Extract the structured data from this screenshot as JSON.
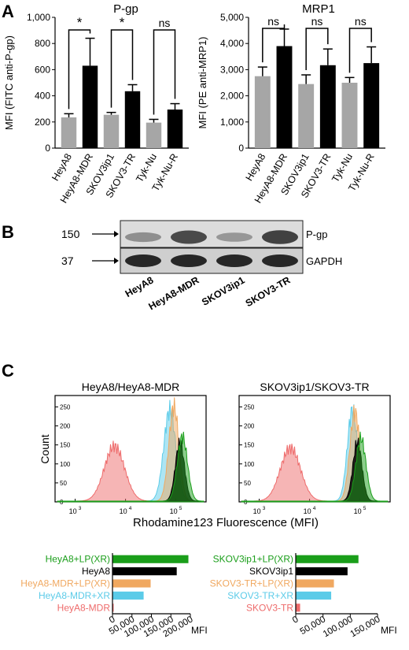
{
  "panels": {
    "a": {
      "letter": "A"
    },
    "b": {
      "letter": "B"
    },
    "c": {
      "letter": "C"
    }
  },
  "colors": {
    "gray": "#a6a6a6",
    "black": "#000000",
    "green": "#1a9e1a",
    "orange": "#f0a860",
    "cyan": "#5bcbe8",
    "red": "#ee6b6b"
  },
  "chart_data": [
    {
      "id": "pgp",
      "type": "bar",
      "title": "P-gp",
      "ylabel": "MFI (FITC anti-P-gp)",
      "ylim": [
        0,
        1000
      ],
      "yticks": [
        "0",
        "200",
        "400",
        "600",
        "800",
        "1,000"
      ],
      "categories": [
        "HeyA8",
        "HeyA8-MDR",
        "SKOV3ip1",
        "SKOV3-TR",
        "Tyk-Nu",
        "Tyk-Nu-R"
      ],
      "values": [
        235,
        630,
        255,
        435,
        195,
        295
      ],
      "errors": [
        28,
        210,
        18,
        50,
        25,
        45
      ],
      "bar_colors": [
        "#a6a6a6",
        "#000000",
        "#a6a6a6",
        "#000000",
        "#a6a6a6",
        "#000000"
      ],
      "significance": [
        "*",
        "*",
        "ns"
      ]
    },
    {
      "id": "mrp1",
      "type": "bar",
      "title": "MRP1",
      "ylabel": "MFI (PE anti-MRP1)",
      "ylim": [
        0,
        5000
      ],
      "yticks": [
        "0",
        "1,000",
        "2,000",
        "3,000",
        "4,000",
        "5,000"
      ],
      "categories": [
        "HeyA8",
        "HeyA8-MDR",
        "SKOV3ip1",
        "SKOV3-TR",
        "Tyk-Nu",
        "Tyk-Nu-R"
      ],
      "values": [
        2750,
        3900,
        2450,
        3170,
        2500,
        3250
      ],
      "errors": [
        350,
        650,
        350,
        620,
        200,
        620
      ],
      "bar_colors": [
        "#a6a6a6",
        "#000000",
        "#a6a6a6",
        "#000000",
        "#a6a6a6",
        "#000000"
      ],
      "significance": [
        "ns",
        "ns",
        "ns"
      ]
    },
    {
      "id": "western",
      "type": "table",
      "markers": [
        "150",
        "37"
      ],
      "bands": [
        "P-gp",
        "GAPDH"
      ],
      "lanes": [
        "HeyA8",
        "HeyA8-MDR",
        "SKOV3ip1",
        "SKOV3-TR"
      ],
      "pgp_intensity": [
        0.35,
        0.75,
        0.3,
        0.8
      ],
      "gapdh_intensity": [
        0.95,
        0.95,
        0.95,
        0.95
      ]
    },
    {
      "id": "flow",
      "type": "area",
      "ylabel": "Count",
      "xlabel": "Rhodamine123 Fluorescence (MFI)",
      "subtitles": [
        "HeyA8/HeyA8-MDR",
        "SKOV3ip1/SKOV3-TR"
      ],
      "xlim_log10": [
        2.6,
        5.6
      ],
      "ylim": [
        0,
        280
      ],
      "yticks": [
        "0",
        "50",
        "100",
        "150",
        "200",
        "250"
      ],
      "xticks": [
        {
          "exp": 3,
          "label": "10",
          "sup": "3"
        },
        {
          "exp": 4,
          "label": "10",
          "sup": "4"
        },
        {
          "exp": 5,
          "label": "10",
          "sup": "5"
        }
      ],
      "histograms": [
        [
          {
            "name": "HeyA8-MDR",
            "color": "#ee6b6b",
            "peak_log10": 3.78,
            "width": 0.2,
            "height": 145
          },
          {
            "name": "HeyA8-MDR+XR",
            "color": "#5bcbe8",
            "peak_log10": 4.88,
            "width": 0.12,
            "height": 240
          },
          {
            "name": "HeyA8-MDR+LP(XR)",
            "color": "#f0a860",
            "peak_log10": 4.96,
            "width": 0.1,
            "height": 250
          },
          {
            "name": "HeyA8",
            "color": "#000000",
            "peak_log10": 5.08,
            "width": 0.09,
            "height": 155
          },
          {
            "name": "HeyA8+LP(XR)",
            "color": "#1a9e1a",
            "peak_log10": 5.13,
            "width": 0.1,
            "height": 170
          }
        ],
        [
          {
            "name": "SKOV3-TR",
            "color": "#ee6b6b",
            "peak_log10": 3.62,
            "width": 0.2,
            "height": 140
          },
          {
            "name": "SKOV3-TR+XR",
            "color": "#5bcbe8",
            "peak_log10": 4.85,
            "width": 0.1,
            "height": 240
          },
          {
            "name": "SKOV3-TR+LP(XR)",
            "color": "#f0a860",
            "peak_log10": 4.9,
            "width": 0.1,
            "height": 235
          },
          {
            "name": "SKOV3ip1",
            "color": "#000000",
            "peak_log10": 4.95,
            "width": 0.09,
            "height": 155
          },
          {
            "name": "SKOV3ip1+LP(XR)",
            "color": "#1a9e1a",
            "peak_log10": 5.02,
            "width": 0.1,
            "height": 165
          }
        ]
      ]
    },
    {
      "id": "mfi-left",
      "type": "bar",
      "xlabel": "MFI",
      "xlim": [
        0,
        200000
      ],
      "xticks": [
        "0",
        "50,000",
        "100,000",
        "150,000",
        "200,000"
      ],
      "categories": [
        "HeyA8+LP(XR)",
        "HeyA8",
        "HeyA8-MDR+LP(XR)",
        "HeyA8-MDR+XR",
        "HeyA8-MDR"
      ],
      "values": [
        195000,
        165000,
        98000,
        80000,
        3000
      ],
      "bar_colors": [
        "#1a9e1a",
        "#000000",
        "#f0a860",
        "#5bcbe8",
        "#ee6b6b"
      ]
    },
    {
      "id": "mfi-right",
      "type": "bar",
      "xlabel": "MFI",
      "xlim": [
        0,
        150000
      ],
      "xticks": [
        "0",
        "50,000",
        "100,000",
        "150,000"
      ],
      "categories": [
        "SKOV3ip1+LP(XR)",
        "SKOV3ip1",
        "SKOV3-TR+LP(XR)",
        "SKOV3-TR+XR",
        "SKOV3-TR"
      ],
      "values": [
        115000,
        95000,
        70000,
        65000,
        8000
      ],
      "bar_colors": [
        "#1a9e1a",
        "#000000",
        "#f0a860",
        "#5bcbe8",
        "#ee6b6b"
      ]
    }
  ]
}
